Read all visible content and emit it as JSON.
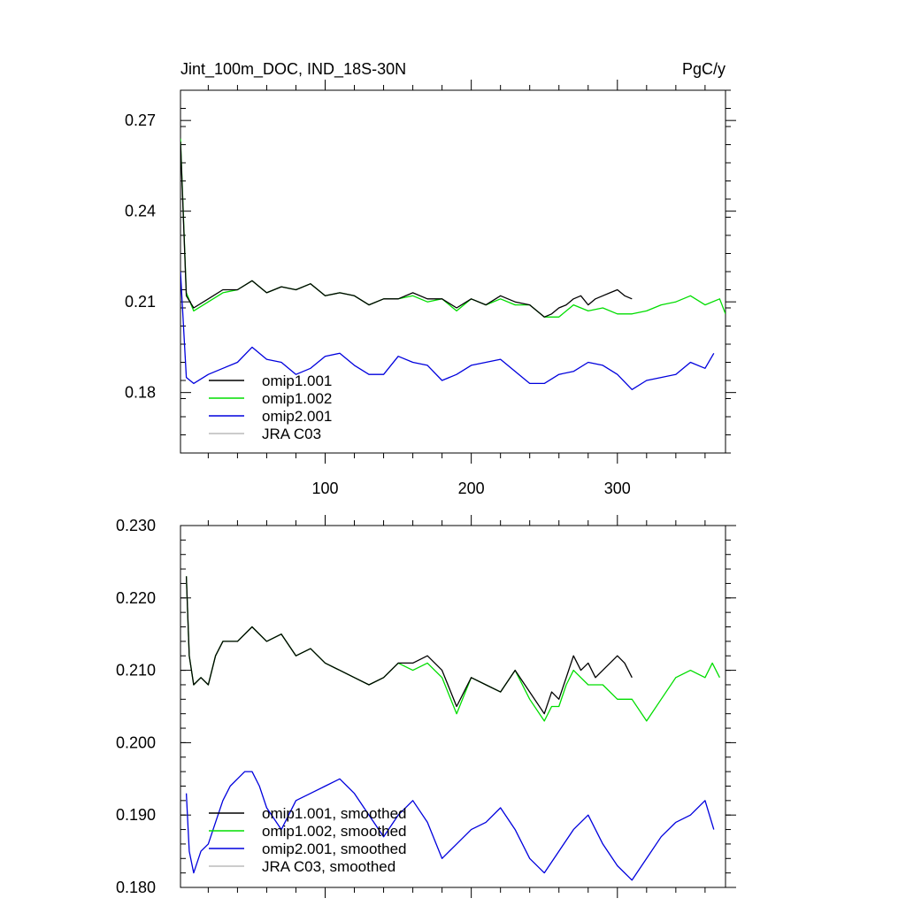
{
  "chart_data": [
    {
      "type": "line",
      "title": "Jint_100m_DOC, IND_18S-30N",
      "units": "PgC/y",
      "xlim": [
        1,
        374
      ],
      "ylim": [
        0.16,
        0.28
      ],
      "xticks": [
        100,
        200,
        300
      ],
      "xtick_labels": [
        "100",
        "200",
        "300"
      ],
      "yticks": [
        0.18,
        0.21,
        0.24,
        0.27
      ],
      "ytick_labels": [
        "0.18",
        "0.21",
        "0.24",
        "0.27"
      ],
      "grid": false,
      "legend_position": "bottom-left",
      "series": [
        {
          "name": "omip1.001",
          "color": "#000000",
          "x": [
            1,
            5,
            10,
            20,
            30,
            40,
            50,
            60,
            70,
            80,
            90,
            100,
            110,
            120,
            130,
            140,
            150,
            160,
            170,
            180,
            190,
            200,
            210,
            220,
            230,
            240,
            250,
            255,
            260,
            265,
            270,
            275,
            280,
            285,
            290,
            295,
            300,
            305,
            310
          ],
          "y": [
            0.263,
            0.212,
            0.208,
            0.211,
            0.214,
            0.214,
            0.217,
            0.213,
            0.215,
            0.214,
            0.216,
            0.212,
            0.213,
            0.212,
            0.209,
            0.211,
            0.211,
            0.213,
            0.211,
            0.211,
            0.208,
            0.211,
            0.209,
            0.212,
            0.21,
            0.209,
            0.205,
            0.206,
            0.208,
            0.209,
            0.211,
            0.212,
            0.209,
            0.211,
            0.212,
            0.213,
            0.214,
            0.212,
            0.211
          ]
        },
        {
          "name": "omip1.002",
          "color": "#00dd00",
          "x": [
            1,
            5,
            10,
            20,
            30,
            40,
            50,
            60,
            70,
            80,
            90,
            100,
            110,
            120,
            130,
            140,
            150,
            160,
            170,
            180,
            190,
            200,
            210,
            220,
            230,
            240,
            250,
            260,
            270,
            280,
            290,
            300,
            310,
            320,
            330,
            340,
            350,
            360,
            370,
            374
          ],
          "y": [
            0.264,
            0.213,
            0.207,
            0.21,
            0.213,
            0.214,
            0.217,
            0.213,
            0.215,
            0.214,
            0.216,
            0.212,
            0.213,
            0.212,
            0.209,
            0.211,
            0.211,
            0.212,
            0.21,
            0.211,
            0.207,
            0.211,
            0.209,
            0.211,
            0.209,
            0.209,
            0.205,
            0.205,
            0.209,
            0.207,
            0.208,
            0.206,
            0.206,
            0.207,
            0.209,
            0.21,
            0.212,
            0.209,
            0.211,
            0.206
          ]
        },
        {
          "name": "omip2.001",
          "color": "#0000dd",
          "x": [
            1,
            5,
            10,
            20,
            30,
            40,
            50,
            60,
            70,
            80,
            90,
            100,
            110,
            120,
            130,
            140,
            150,
            160,
            170,
            180,
            190,
            200,
            210,
            220,
            230,
            240,
            250,
            260,
            270,
            280,
            290,
            300,
            310,
            320,
            330,
            340,
            350,
            360,
            366
          ],
          "y": [
            0.22,
            0.185,
            0.183,
            0.186,
            0.188,
            0.19,
            0.195,
            0.191,
            0.19,
            0.186,
            0.188,
            0.192,
            0.193,
            0.189,
            0.186,
            0.186,
            0.192,
            0.19,
            0.189,
            0.184,
            0.186,
            0.189,
            0.19,
            0.191,
            0.187,
            0.183,
            0.183,
            0.186,
            0.187,
            0.19,
            0.189,
            0.186,
            0.181,
            0.184,
            0.185,
            0.186,
            0.19,
            0.188,
            0.193
          ]
        },
        {
          "name": "JRA C03",
          "color": "#bbbbbb",
          "x": [],
          "y": []
        }
      ]
    },
    {
      "type": "line",
      "title": "",
      "xlim": [
        1,
        374
      ],
      "ylim": [
        0.18,
        0.23
      ],
      "xticks": [
        100,
        200,
        300
      ],
      "xtick_labels": [],
      "yticks": [
        0.18,
        0.19,
        0.2,
        0.21,
        0.22,
        0.23
      ],
      "ytick_labels": [
        "0.180",
        "0.190",
        "0.200",
        "0.210",
        "0.220",
        "0.230"
      ],
      "grid": false,
      "legend_position": "bottom-left",
      "series": [
        {
          "name": "omip1.001, smoothed",
          "color": "#000000",
          "x": [
            5,
            7,
            10,
            15,
            20,
            25,
            30,
            40,
            50,
            60,
            70,
            80,
            90,
            100,
            110,
            120,
            130,
            140,
            150,
            160,
            170,
            180,
            190,
            200,
            210,
            220,
            230,
            240,
            250,
            255,
            260,
            265,
            270,
            275,
            280,
            285,
            290,
            295,
            300,
            305,
            310
          ],
          "y": [
            0.223,
            0.212,
            0.208,
            0.209,
            0.208,
            0.212,
            0.214,
            0.214,
            0.216,
            0.214,
            0.215,
            0.212,
            0.213,
            0.211,
            0.21,
            0.209,
            0.208,
            0.209,
            0.211,
            0.211,
            0.212,
            0.21,
            0.205,
            0.209,
            0.208,
            0.207,
            0.21,
            0.207,
            0.204,
            0.207,
            0.206,
            0.209,
            0.212,
            0.21,
            0.211,
            0.209,
            0.21,
            0.211,
            0.212,
            0.211,
            0.209
          ]
        },
        {
          "name": "omip1.002, smoothed",
          "color": "#00dd00",
          "x": [
            5,
            7,
            10,
            15,
            20,
            25,
            30,
            40,
            50,
            60,
            70,
            80,
            90,
            100,
            110,
            120,
            130,
            140,
            150,
            160,
            170,
            180,
            190,
            200,
            210,
            220,
            230,
            240,
            250,
            255,
            260,
            265,
            270,
            275,
            280,
            290,
            300,
            310,
            320,
            330,
            340,
            350,
            360,
            365,
            370
          ],
          "y": [
            0.223,
            0.212,
            0.208,
            0.209,
            0.208,
            0.212,
            0.214,
            0.214,
            0.216,
            0.214,
            0.215,
            0.212,
            0.213,
            0.211,
            0.21,
            0.209,
            0.208,
            0.209,
            0.211,
            0.21,
            0.211,
            0.209,
            0.204,
            0.209,
            0.208,
            0.207,
            0.21,
            0.206,
            0.203,
            0.205,
            0.205,
            0.208,
            0.21,
            0.209,
            0.208,
            0.208,
            0.206,
            0.206,
            0.203,
            0.206,
            0.209,
            0.21,
            0.209,
            0.211,
            0.209
          ]
        },
        {
          "name": "omip2.001, smoothed",
          "color": "#0000dd",
          "x": [
            5,
            7,
            10,
            15,
            20,
            25,
            30,
            35,
            40,
            45,
            50,
            55,
            60,
            70,
            80,
            90,
            100,
            110,
            120,
            130,
            140,
            150,
            160,
            170,
            180,
            190,
            200,
            210,
            220,
            230,
            240,
            250,
            260,
            270,
            280,
            290,
            300,
            310,
            320,
            330,
            340,
            350,
            360,
            366
          ],
          "y": [
            0.193,
            0.185,
            0.182,
            0.185,
            0.186,
            0.189,
            0.192,
            0.194,
            0.195,
            0.196,
            0.196,
            0.194,
            0.191,
            0.188,
            0.192,
            0.193,
            0.194,
            0.195,
            0.193,
            0.19,
            0.187,
            0.19,
            0.192,
            0.189,
            0.184,
            0.186,
            0.188,
            0.189,
            0.191,
            0.188,
            0.184,
            0.182,
            0.185,
            0.188,
            0.19,
            0.186,
            0.183,
            0.181,
            0.184,
            0.187,
            0.189,
            0.19,
            0.192,
            0.188
          ]
        },
        {
          "name": "JRA C03, smoothed",
          "color": "#bbbbbb",
          "x": [],
          "y": []
        }
      ]
    }
  ]
}
